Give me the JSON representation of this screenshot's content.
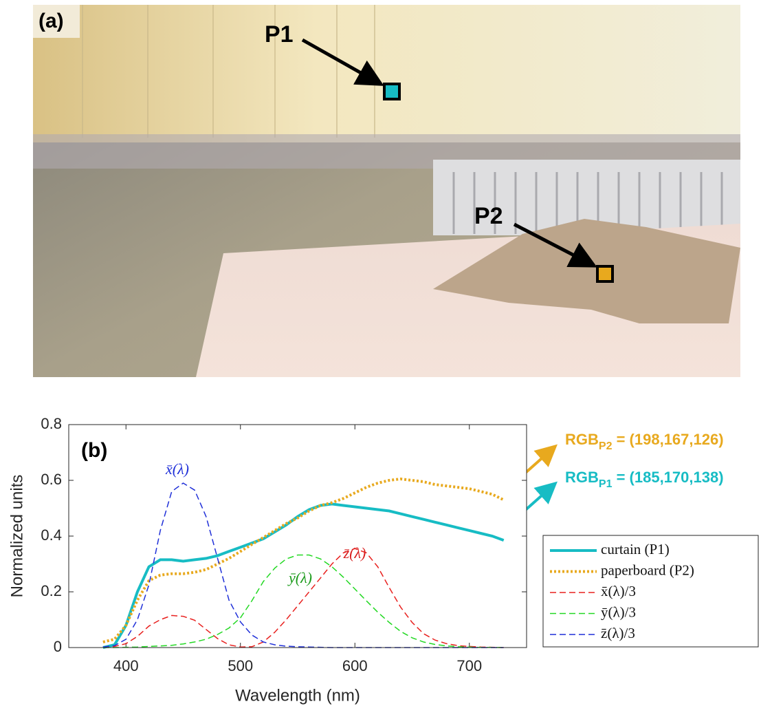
{
  "photo": {
    "panel_label": "(a)",
    "points": [
      {
        "label": "P1",
        "color": "#17bcc4"
      },
      {
        "label": "P2",
        "color": "#e8a91e"
      }
    ]
  },
  "chart_data": {
    "type": "line",
    "panel_label": "(b)",
    "x_label": "Wavelength (nm)",
    "y_label": "Normalized units",
    "xlim": [
      350,
      750
    ],
    "xticks": [
      400,
      500,
      600,
      700
    ],
    "ylim": [
      0,
      0.8
    ],
    "yticks": [
      0,
      0.2,
      0.4,
      0.6,
      0.8
    ],
    "x": [
      380,
      390,
      400,
      410,
      420,
      430,
      440,
      450,
      460,
      470,
      480,
      490,
      500,
      510,
      520,
      530,
      540,
      550,
      560,
      570,
      580,
      590,
      600,
      610,
      620,
      630,
      640,
      650,
      660,
      670,
      680,
      690,
      700,
      710,
      720,
      730
    ],
    "series": [
      {
        "name": "curtain (P1)",
        "color": "#17bcc4",
        "style": "solid",
        "values": [
          0,
          0.01,
          0.08,
          0.2,
          0.29,
          0.315,
          0.315,
          0.31,
          0.315,
          0.32,
          0.33,
          0.345,
          0.36,
          0.375,
          0.39,
          0.415,
          0.44,
          0.47,
          0.495,
          0.51,
          0.515,
          0.51,
          0.505,
          0.5,
          0.495,
          0.49,
          0.48,
          0.47,
          0.46,
          0.45,
          0.44,
          0.43,
          0.42,
          0.41,
          0.4,
          0.385
        ]
      },
      {
        "name": "paperboard (P2)",
        "color": "#e8a91e",
        "style": "dotted",
        "values": [
          0.02,
          0.03,
          0.08,
          0.17,
          0.24,
          0.26,
          0.265,
          0.265,
          0.27,
          0.28,
          0.3,
          0.32,
          0.345,
          0.37,
          0.395,
          0.42,
          0.445,
          0.465,
          0.49,
          0.51,
          0.52,
          0.535,
          0.555,
          0.575,
          0.59,
          0.6,
          0.605,
          0.6,
          0.595,
          0.585,
          0.58,
          0.575,
          0.57,
          0.56,
          0.55,
          0.53
        ]
      },
      {
        "name": "x̄(λ)/3",
        "color": "#e8201e",
        "style": "dashed",
        "values": [
          0.001,
          0.004,
          0.014,
          0.04,
          0.077,
          0.1,
          0.115,
          0.112,
          0.098,
          0.065,
          0.032,
          0.01,
          0.002,
          0.003,
          0.02,
          0.055,
          0.1,
          0.15,
          0.2,
          0.25,
          0.3,
          0.34,
          0.355,
          0.34,
          0.29,
          0.215,
          0.145,
          0.09,
          0.05,
          0.027,
          0.014,
          0.007,
          0.004,
          0.002,
          0.001,
          0
        ]
      },
      {
        "name": "ȳ(λ)/3",
        "color": "#22d822",
        "style": "dashed",
        "values": [
          0,
          0,
          0.001,
          0.002,
          0.004,
          0.006,
          0.008,
          0.013,
          0.02,
          0.03,
          0.047,
          0.07,
          0.107,
          0.168,
          0.237,
          0.285,
          0.318,
          0.332,
          0.332,
          0.318,
          0.29,
          0.252,
          0.21,
          0.168,
          0.127,
          0.09,
          0.058,
          0.035,
          0.02,
          0.011,
          0.006,
          0.003,
          0.0015,
          0.0008,
          0.0004,
          0.0002
        ]
      },
      {
        "name": "z̄(λ)/3",
        "color": "#1f2fd8",
        "style": "dashed",
        "values": [
          0.002,
          0.007,
          0.03,
          0.1,
          0.225,
          0.42,
          0.56,
          0.59,
          0.565,
          0.47,
          0.32,
          0.17,
          0.092,
          0.045,
          0.02,
          0.01,
          0.005,
          0.003,
          0.002,
          0.001,
          0,
          0,
          0,
          0,
          0,
          0,
          0,
          0,
          0,
          0,
          0,
          0,
          0,
          0,
          0,
          0
        ]
      }
    ],
    "curve_labels": [
      {
        "text": "x̄(λ)",
        "color": "#1f2fd8"
      },
      {
        "text": "ȳ(λ)",
        "color": "#1a9a1a"
      },
      {
        "text": "z̄(λ)",
        "color": "#d81e1e"
      }
    ],
    "rgb_labels": [
      {
        "text": "RGB",
        "sub": "P2",
        "rest": " = (198,167,126)",
        "color": "#e8a91e"
      },
      {
        "text": "RGB",
        "sub": "P1",
        "rest": " = (185,170,138)",
        "color": "#17bcc4"
      }
    ]
  }
}
